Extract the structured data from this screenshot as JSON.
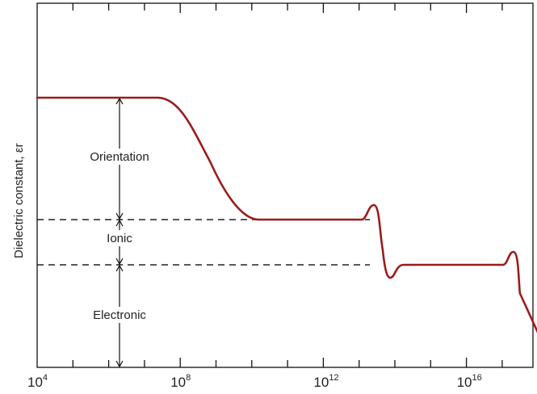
{
  "chart_data": {
    "type": "line",
    "title": "",
    "xlabel": "",
    "ylabel": "Dielectric constant, εr",
    "x_scale": "log10",
    "x_ticks": [
      {
        "base": "10",
        "exp": "4",
        "value": 4
      },
      {
        "base": "10",
        "exp": "8",
        "value": 8
      },
      {
        "base": "10",
        "exp": "12",
        "value": 12
      },
      {
        "base": "10",
        "exp": "16",
        "value": 16
      }
    ],
    "xlim_log10": [
      4,
      18.4
    ],
    "grid": false,
    "series": [
      {
        "color": "#9b1c1c",
        "levels": {
          "total": 3,
          "ionic_plus_electronic": 2,
          "electronic": 1,
          "bottom": 0
        },
        "x_log10": [
          4,
          7.5,
          10.2,
          13.3,
          14.1,
          17.2,
          18.4
        ],
        "y_level": [
          3,
          3,
          2,
          2,
          1,
          1,
          0.1
        ]
      }
    ],
    "reference_lines": [
      {
        "level": 2,
        "style": "dashed"
      },
      {
        "level": 1,
        "style": "dashed"
      }
    ],
    "annotations": [
      {
        "text": "Orientation",
        "span": [
          2,
          3
        ]
      },
      {
        "text": "Ionic",
        "span": [
          1,
          2
        ]
      },
      {
        "text": "Electronic",
        "span": [
          0,
          1
        ]
      }
    ]
  }
}
